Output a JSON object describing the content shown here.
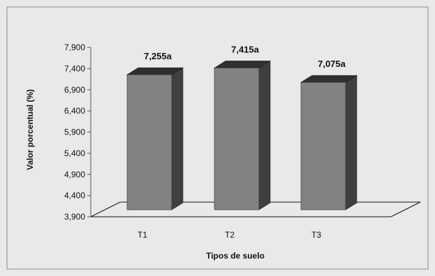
{
  "chart_data": {
    "type": "bar",
    "categories": [
      "T1",
      "T2",
      "T3"
    ],
    "values": [
      7.255,
      7.415,
      7.075
    ],
    "data_labels": [
      "7,255a",
      "7,415a",
      "7,075a"
    ],
    "title": "",
    "xlabel": "Tipos de suelo",
    "ylabel": "Valor porcentual (%)",
    "ylim": [
      3.9,
      7.9
    ],
    "yticks": [
      3.9,
      4.4,
      4.9,
      5.4,
      5.9,
      6.4,
      6.9,
      7.4,
      7.9
    ],
    "ytick_labels": [
      "3,900",
      "4,400",
      "4,900",
      "5,400",
      "5,900",
      "6,400",
      "6,900",
      "7,400",
      "7,900"
    ],
    "grid": false,
    "legend": "none",
    "style": "3d-column",
    "colors": {
      "bar_front": "#828282",
      "bar_side": "#3f3f3f",
      "bar_top": "#2f2f2f",
      "background": "#e9e9e9",
      "frame": "#8a8a8a"
    }
  }
}
